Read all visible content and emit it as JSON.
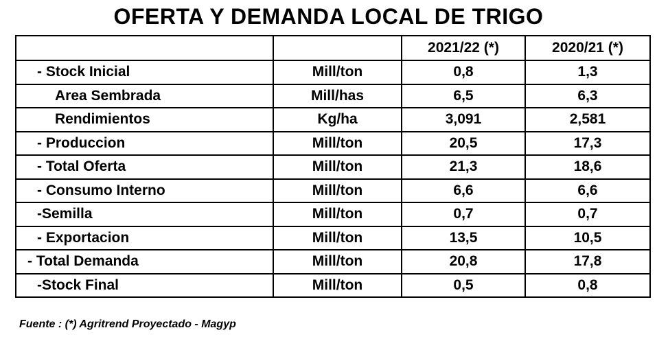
{
  "title": "OFERTA Y DEMANDA LOCAL DE TRIGO",
  "header": {
    "label": "",
    "unit": "",
    "col1": "2021/22 (*)",
    "col2": "2020/21 (*)"
  },
  "rows": [
    {
      "label": "- Stock Inicial",
      "unit": "Mill/ton",
      "v1": "0,8",
      "v2": "1,3",
      "indent": 1
    },
    {
      "label": "Area Sembrada",
      "unit": "Mill/has",
      "v1": "6,5",
      "v2": "6,3",
      "indent": 2
    },
    {
      "label": "Rendimientos",
      "unit": "Kg/ha",
      "v1": "3,091",
      "v2": "2,581",
      "indent": 2
    },
    {
      "label": "- Produccion",
      "unit": "Mill/ton",
      "v1": "20,5",
      "v2": "17,3",
      "indent": 1
    },
    {
      "label": "- Total Oferta",
      "unit": "Mill/ton",
      "v1": "21,3",
      "v2": "18,6",
      "indent": 1
    },
    {
      "label": "- Consumo Interno",
      "unit": "Mill/ton",
      "v1": "6,6",
      "v2": "6,6",
      "indent": 1
    },
    {
      "label": "-Semilla",
      "unit": "Mill/ton",
      "v1": "0,7",
      "v2": "0,7",
      "indent": 1
    },
    {
      "label": "- Exportacion",
      "unit": "Mill/ton",
      "v1": "13,5",
      "v2": "10,5",
      "indent": 1
    },
    {
      "label": "- Total Demanda",
      "unit": "Mill/ton",
      "v1": "20,8",
      "v2": "17,8",
      "indent": 0
    },
    {
      "label": "-Stock Final",
      "unit": "Mill/ton",
      "v1": "0,5",
      "v2": "0,8",
      "indent": 1
    }
  ],
  "source": "Fuente : (*) Agritrend Proyectado  - Magyp"
}
